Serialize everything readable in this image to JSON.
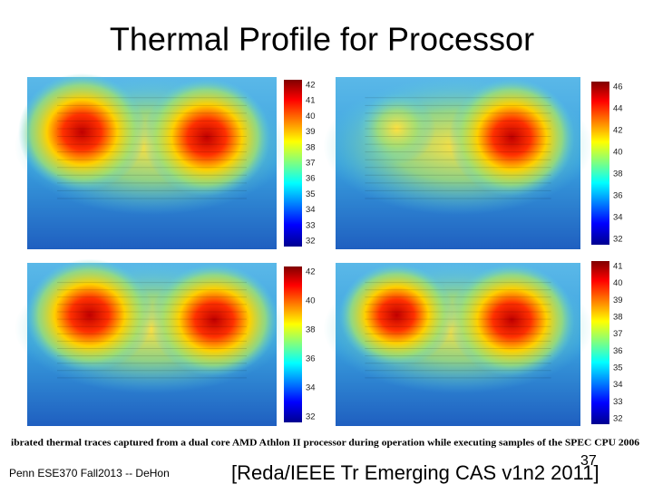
{
  "title": "Thermal Profile for Processor",
  "panels": [
    {
      "colorbar_labels": [
        42,
        41,
        40,
        39,
        38,
        37,
        36,
        35,
        34,
        33,
        32
      ]
    },
    {
      "colorbar_labels": [
        46,
        44,
        42,
        40,
        38,
        36,
        34,
        32
      ]
    },
    {
      "colorbar_labels": [
        42,
        40,
        38,
        36,
        34,
        32
      ]
    },
    {
      "colorbar_labels": [
        41,
        40,
        39,
        38,
        37,
        36,
        35,
        34,
        33,
        32
      ]
    }
  ],
  "caption": "ibrated thermal traces captured from a dual core AMD Athlon II processor during operation while executing samples of the SPEC CPU 2006",
  "footer": "Penn ESE370 Fall2013 -- DeHon",
  "page_number": "37",
  "citation": "[Reda/IEEE Tr Emerging CAS v1n2 2011]"
}
